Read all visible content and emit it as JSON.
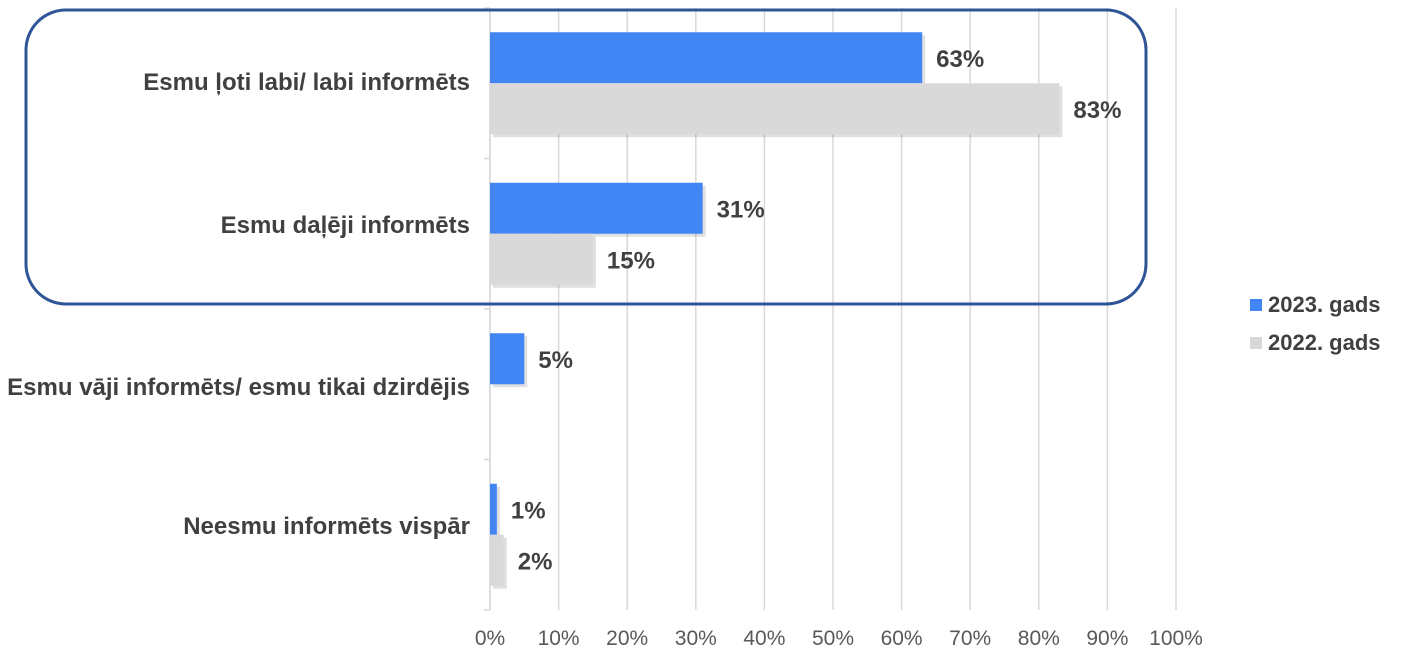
{
  "chart_data": {
    "type": "bar",
    "orientation": "horizontal",
    "categories": [
      "Esmu ļoti labi/ labi informēts",
      "Esmu daļēji informēts",
      "Esmu vāji informēts/ esmu tikai dzirdējis",
      "Neesmu informēts vispār"
    ],
    "series": [
      {
        "name": "2023. gads",
        "color": "#4285f4",
        "values": [
          63,
          31,
          5,
          1
        ],
        "labels": [
          "63%",
          "31%",
          "5%",
          "1%"
        ]
      },
      {
        "name": "2022. gads",
        "color": "#d9d9d9",
        "values": [
          83,
          15,
          null,
          2
        ],
        "labels": [
          "83%",
          "15%",
          "",
          "2%"
        ]
      }
    ],
    "xlim": [
      0,
      100
    ],
    "xticks": [
      "0%",
      "10%",
      "20%",
      "30%",
      "40%",
      "50%",
      "60%",
      "70%",
      "80%",
      "90%",
      "100%"
    ],
    "grid": true,
    "legend_position": "right",
    "highlight": {
      "categories": [
        0,
        1
      ],
      "color": "#2f5597"
    }
  }
}
